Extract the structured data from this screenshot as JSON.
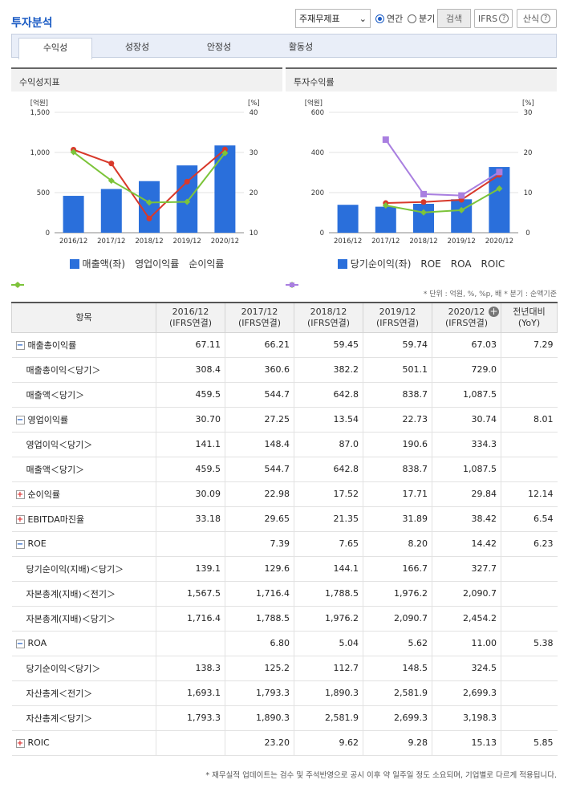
{
  "header": {
    "title": "투자분석",
    "select_value": "주재무제표",
    "radio_annual": "연간",
    "radio_quarter": "분기",
    "search": "검색",
    "ifrs": "IFRS",
    "calc": "산식"
  },
  "tabs": [
    "수익성",
    "성장성",
    "안정성",
    "활동성"
  ],
  "unit_note": "* 단위 : 억원, %, %p, 배   * 분기 : 순액기준",
  "footnote": "* 재무실적 업데이트는 검수 및 주석반영으로 공시 이후 약 일주일 정도 소요되며, 기업별로 다르게 적용됩니다.",
  "colors": {
    "bar": "#2a6fdb",
    "red": "#d8392b",
    "green": "#7cc43a",
    "purple": "#a97fe0"
  },
  "chart_data": [
    {
      "type": "bar",
      "title": "수익성지표",
      "categories": [
        "2016/12",
        "2017/12",
        "2018/12",
        "2019/12",
        "2020/12"
      ],
      "left_unit": "[억원]",
      "right_unit": "[%]",
      "left_ticks": [
        "1,500",
        "1,000",
        "500",
        "0"
      ],
      "right_ticks": [
        "40",
        "30",
        "20",
        "10"
      ],
      "left_lim": [
        0,
        1500
      ],
      "right_lim": [
        10,
        40
      ],
      "series": [
        {
          "name": "매출액(좌)",
          "type": "bar",
          "axis": "left",
          "values": [
            459.5,
            544.7,
            642.8,
            838.7,
            1087.5
          ]
        },
        {
          "name": "영업이익률",
          "type": "line",
          "axis": "right",
          "color": "#d8392b",
          "values": [
            30.7,
            27.25,
            13.54,
            22.73,
            30.74
          ]
        },
        {
          "name": "순이익률",
          "type": "line",
          "axis": "right",
          "color": "#7cc43a",
          "values": [
            30.09,
            22.98,
            17.52,
            17.71,
            29.84
          ]
        }
      ]
    },
    {
      "type": "bar",
      "title": "투자수익률",
      "categories": [
        "2016/12",
        "2017/12",
        "2018/12",
        "2019/12",
        "2020/12"
      ],
      "left_unit": "[억원]",
      "right_unit": "[%]",
      "left_ticks": [
        "600",
        "400",
        "200",
        "0"
      ],
      "right_ticks": [
        "30",
        "20",
        "10",
        "0"
      ],
      "left_lim": [
        0,
        600
      ],
      "right_lim": [
        0,
        30
      ],
      "series": [
        {
          "name": "당기순이익(좌)",
          "type": "bar",
          "axis": "left",
          "values": [
            139.1,
            129.6,
            144.1,
            166.7,
            327.7
          ]
        },
        {
          "name": "ROE",
          "type": "line",
          "axis": "right",
          "color": "#d8392b",
          "values": [
            null,
            7.39,
            7.65,
            8.2,
            14.42
          ]
        },
        {
          "name": "ROA",
          "type": "line",
          "axis": "right",
          "color": "#7cc43a",
          "values": [
            null,
            6.8,
            5.04,
            5.62,
            11.0
          ]
        },
        {
          "name": "ROIC",
          "type": "line",
          "axis": "right",
          "color": "#a97fe0",
          "values": [
            null,
            23.2,
            9.62,
            9.28,
            15.13
          ]
        }
      ]
    }
  ],
  "table": {
    "headers": [
      "항목",
      "2016/12\n(IFRS연결)",
      "2017/12\n(IFRS연결)",
      "2018/12\n(IFRS연결)",
      "2019/12\n(IFRS연결)",
      "2020/12\n(IFRS연결)",
      "전년대비\n(YoY)"
    ],
    "rows": [
      {
        "label": "매출총이익률",
        "toggle": "-",
        "values": [
          "67.11",
          "66.21",
          "59.45",
          "59.74",
          "67.03",
          "7.29"
        ]
      },
      {
        "label": "매출총이익＜당기＞",
        "sub": true,
        "values": [
          "308.4",
          "360.6",
          "382.2",
          "501.1",
          "729.0",
          ""
        ]
      },
      {
        "label": "매출액＜당기＞",
        "sub": true,
        "values": [
          "459.5",
          "544.7",
          "642.8",
          "838.7",
          "1,087.5",
          ""
        ]
      },
      {
        "label": "영업이익률",
        "toggle": "-",
        "values": [
          "30.70",
          "27.25",
          "13.54",
          "22.73",
          "30.74",
          "8.01"
        ]
      },
      {
        "label": "영업이익＜당기＞",
        "sub": true,
        "values": [
          "141.1",
          "148.4",
          "87.0",
          "190.6",
          "334.3",
          ""
        ]
      },
      {
        "label": "매출액＜당기＞",
        "sub": true,
        "values": [
          "459.5",
          "544.7",
          "642.8",
          "838.7",
          "1,087.5",
          ""
        ]
      },
      {
        "label": "순이익률",
        "toggle": "+",
        "values": [
          "30.09",
          "22.98",
          "17.52",
          "17.71",
          "29.84",
          "12.14"
        ]
      },
      {
        "label": "EBITDA마진율",
        "toggle": "+",
        "values": [
          "33.18",
          "29.65",
          "21.35",
          "31.89",
          "38.42",
          "6.54"
        ]
      },
      {
        "label": "ROE",
        "toggle": "-",
        "values": [
          "",
          "7.39",
          "7.65",
          "8.20",
          "14.42",
          "6.23"
        ]
      },
      {
        "label": "당기순이익(지배)＜당기＞",
        "sub": true,
        "values": [
          "139.1",
          "129.6",
          "144.1",
          "166.7",
          "327.7",
          ""
        ]
      },
      {
        "label": "자본총계(지배)＜전기＞",
        "sub": true,
        "values": [
          "1,567.5",
          "1,716.4",
          "1,788.5",
          "1,976.2",
          "2,090.7",
          ""
        ]
      },
      {
        "label": "자본총계(지배)＜당기＞",
        "sub": true,
        "values": [
          "1,716.4",
          "1,788.5",
          "1,976.2",
          "2,090.7",
          "2,454.2",
          ""
        ]
      },
      {
        "label": "ROA",
        "toggle": "-",
        "values": [
          "",
          "6.80",
          "5.04",
          "5.62",
          "11.00",
          "5.38"
        ]
      },
      {
        "label": "당기순이익＜당기＞",
        "sub": true,
        "values": [
          "138.3",
          "125.2",
          "112.7",
          "148.5",
          "324.5",
          ""
        ]
      },
      {
        "label": "자산총계＜전기＞",
        "sub": true,
        "values": [
          "1,693.1",
          "1,793.3",
          "1,890.3",
          "2,581.9",
          "2,699.3",
          ""
        ]
      },
      {
        "label": "자산총계＜당기＞",
        "sub": true,
        "values": [
          "1,793.3",
          "1,890.3",
          "2,581.9",
          "2,699.3",
          "3,198.3",
          ""
        ]
      },
      {
        "label": "ROIC",
        "toggle": "+",
        "values": [
          "",
          "23.20",
          "9.62",
          "9.28",
          "15.13",
          "5.85"
        ]
      }
    ]
  }
}
